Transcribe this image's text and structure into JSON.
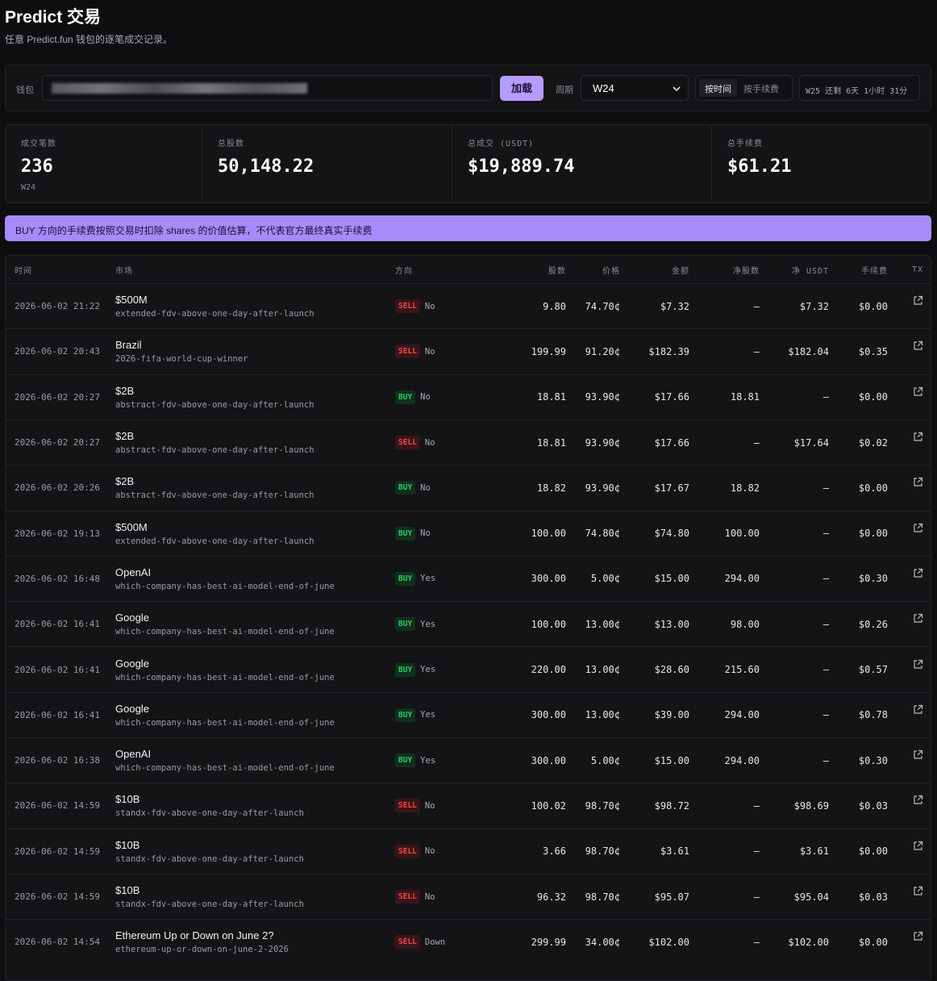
{
  "header": {
    "title": "Predict 交易",
    "subtitle": "任意 Predict.fun 钱包的逐笔成交记录。"
  },
  "toolbar": {
    "wallet_label": "钱包",
    "load_button": "加载",
    "period_label": "周期",
    "period_value": "W24",
    "sort_options": [
      "按时间",
      "按手续费"
    ],
    "countdown": "W25 还剩 6天 1小时 31分"
  },
  "stats": [
    {
      "label": "成交笔数",
      "value": "236",
      "sub": "W24"
    },
    {
      "label": "总股数",
      "value": "50,148.22"
    },
    {
      "label": "总成交 (USDT)",
      "value": "$19,889.74"
    },
    {
      "label": "总手续费",
      "value": "$61.21"
    }
  ],
  "notice": "BUY 方向的手续费按照交易时扣除 shares 的价值估算，不代表官方最终真实手续费",
  "table": {
    "columns": [
      "时间",
      "市场",
      "方向",
      "股数",
      "价格",
      "金额",
      "净股数",
      "净 USDT",
      "手续费",
      "TX"
    ],
    "rows": [
      {
        "time": "2026-06-02 21:22",
        "market": "$500M",
        "slug": "extended-fdv-above-one-day-after-launch",
        "side": "SELL",
        "outcome": "No",
        "shares": "9.80",
        "price": "74.70¢",
        "amount": "$7.32",
        "net_shares": "—",
        "net_usdt": "$7.32",
        "fee": "$0.00"
      },
      {
        "time": "2026-06-02 20:43",
        "market": "Brazil",
        "slug": "2026-fifa-world-cup-winner",
        "side": "SELL",
        "outcome": "No",
        "shares": "199.99",
        "price": "91.20¢",
        "amount": "$182.39",
        "net_shares": "—",
        "net_usdt": "$182.04",
        "fee": "$0.35"
      },
      {
        "time": "2026-06-02 20:27",
        "market": "$2B",
        "slug": "abstract-fdv-above-one-day-after-launch",
        "side": "BUY",
        "outcome": "No",
        "shares": "18.81",
        "price": "93.90¢",
        "amount": "$17.66",
        "net_shares": "18.81",
        "net_usdt": "—",
        "fee": "$0.00"
      },
      {
        "time": "2026-06-02 20:27",
        "market": "$2B",
        "slug": "abstract-fdv-above-one-day-after-launch",
        "side": "SELL",
        "outcome": "No",
        "shares": "18.81",
        "price": "93.90¢",
        "amount": "$17.66",
        "net_shares": "—",
        "net_usdt": "$17.64",
        "fee": "$0.02"
      },
      {
        "time": "2026-06-02 20:26",
        "market": "$2B",
        "slug": "abstract-fdv-above-one-day-after-launch",
        "side": "BUY",
        "outcome": "No",
        "shares": "18.82",
        "price": "93.90¢",
        "amount": "$17.67",
        "net_shares": "18.82",
        "net_usdt": "—",
        "fee": "$0.00"
      },
      {
        "time": "2026-06-02 19:13",
        "market": "$500M",
        "slug": "extended-fdv-above-one-day-after-launch",
        "side": "BUY",
        "outcome": "No",
        "shares": "100.00",
        "price": "74.80¢",
        "amount": "$74.80",
        "net_shares": "100.00",
        "net_usdt": "—",
        "fee": "$0.00"
      },
      {
        "time": "2026-06-02 16:48",
        "market": "OpenAI",
        "slug": "which-company-has-best-ai-model-end-of-june",
        "side": "BUY",
        "outcome": "Yes",
        "shares": "300.00",
        "price": "5.00¢",
        "amount": "$15.00",
        "net_shares": "294.00",
        "net_usdt": "—",
        "fee": "$0.30"
      },
      {
        "time": "2026-06-02 16:41",
        "market": "Google",
        "slug": "which-company-has-best-ai-model-end-of-june",
        "side": "BUY",
        "outcome": "Yes",
        "shares": "100.00",
        "price": "13.00¢",
        "amount": "$13.00",
        "net_shares": "98.00",
        "net_usdt": "—",
        "fee": "$0.26"
      },
      {
        "time": "2026-06-02 16:41",
        "market": "Google",
        "slug": "which-company-has-best-ai-model-end-of-june",
        "side": "BUY",
        "outcome": "Yes",
        "shares": "220.00",
        "price": "13.00¢",
        "amount": "$28.60",
        "net_shares": "215.60",
        "net_usdt": "—",
        "fee": "$0.57"
      },
      {
        "time": "2026-06-02 16:41",
        "market": "Google",
        "slug": "which-company-has-best-ai-model-end-of-june",
        "side": "BUY",
        "outcome": "Yes",
        "shares": "300.00",
        "price": "13.00¢",
        "amount": "$39.00",
        "net_shares": "294.00",
        "net_usdt": "—",
        "fee": "$0.78"
      },
      {
        "time": "2026-06-02 16:38",
        "market": "OpenAI",
        "slug": "which-company-has-best-ai-model-end-of-june",
        "side": "BUY",
        "outcome": "Yes",
        "shares": "300.00",
        "price": "5.00¢",
        "amount": "$15.00",
        "net_shares": "294.00",
        "net_usdt": "—",
        "fee": "$0.30"
      },
      {
        "time": "2026-06-02 14:59",
        "market": "$10B",
        "slug": "standx-fdv-above-one-day-after-launch",
        "side": "SELL",
        "outcome": "No",
        "shares": "100.02",
        "price": "98.70¢",
        "amount": "$98.72",
        "net_shares": "—",
        "net_usdt": "$98.69",
        "fee": "$0.03"
      },
      {
        "time": "2026-06-02 14:59",
        "market": "$10B",
        "slug": "standx-fdv-above-one-day-after-launch",
        "side": "SELL",
        "outcome": "No",
        "shares": "3.66",
        "price": "98.70¢",
        "amount": "$3.61",
        "net_shares": "—",
        "net_usdt": "$3.61",
        "fee": "$0.00"
      },
      {
        "time": "2026-06-02 14:59",
        "market": "$10B",
        "slug": "standx-fdv-above-one-day-after-launch",
        "side": "SELL",
        "outcome": "No",
        "shares": "96.32",
        "price": "98.70¢",
        "amount": "$95.07",
        "net_shares": "—",
        "net_usdt": "$95.04",
        "fee": "$0.03"
      },
      {
        "time": "2026-06-02 14:54",
        "market": "Ethereum Up or Down on June 2?",
        "slug": "ethereum-up-or-down-on-june-2-2026",
        "side": "SELL",
        "outcome": "Down",
        "shares": "299.99",
        "price": "34.00¢",
        "amount": "$102.00",
        "net_shares": "—",
        "net_usdt": "$102.00",
        "fee": "$0.00"
      }
    ]
  }
}
